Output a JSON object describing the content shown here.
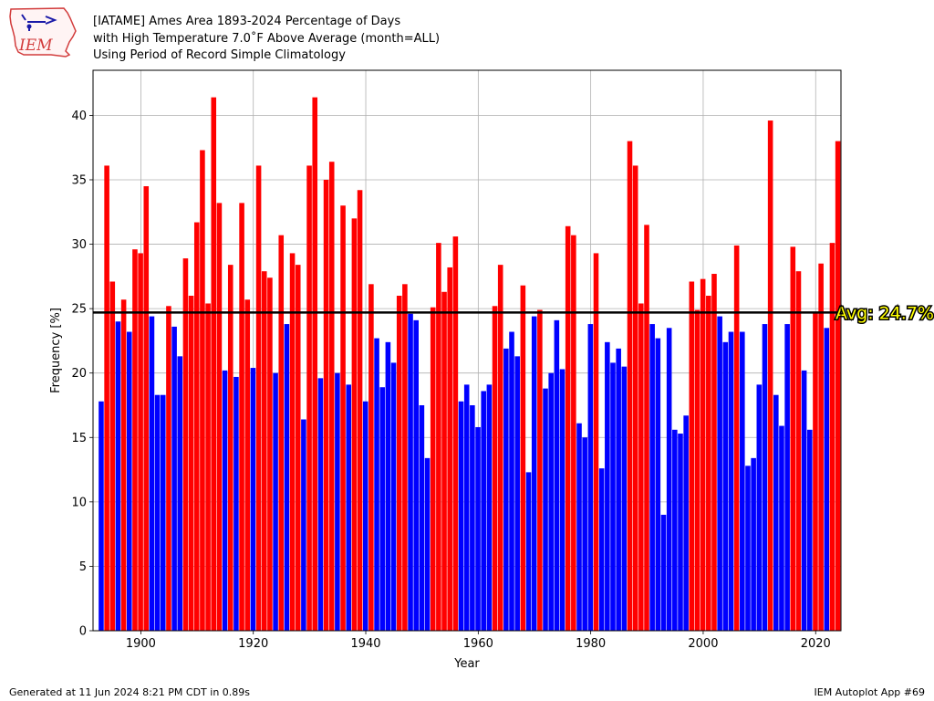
{
  "header": {
    "title_lines": [
      "[IATAME] Ames Area 1893-2024 Percentage of Days",
      "with High Temperature 7.0˚F Above Average (month=ALL)",
      "Using Period of Record Simple Climatology"
    ],
    "logo_text": "IEM"
  },
  "footer": {
    "left": "Generated at 11 Jun 2024 8:21 PM CDT in 0.89s",
    "right": "IEM Autoplot App #69"
  },
  "colors": {
    "above": "#ff0000",
    "below": "#0000ff",
    "avg_line": "#000000",
    "avg_text": "#ffff00"
  },
  "chart_data": {
    "type": "bar",
    "xlabel": "Year",
    "ylabel": "Frequency [%]",
    "xlim": [
      1891.5,
      2024.5
    ],
    "ylim": [
      0,
      43.5
    ],
    "xticks": [
      1900,
      1920,
      1940,
      1960,
      1980,
      2000,
      2020
    ],
    "yticks": [
      0,
      5,
      10,
      15,
      20,
      25,
      30,
      35,
      40
    ],
    "grid": true,
    "average": 24.7,
    "average_label": "Avg: 24.7%",
    "x": [
      1893,
      1894,
      1895,
      1896,
      1897,
      1898,
      1899,
      1900,
      1901,
      1902,
      1903,
      1904,
      1905,
      1906,
      1907,
      1908,
      1909,
      1910,
      1911,
      1912,
      1913,
      1914,
      1915,
      1916,
      1917,
      1918,
      1919,
      1920,
      1921,
      1922,
      1923,
      1924,
      1925,
      1926,
      1927,
      1928,
      1929,
      1930,
      1931,
      1932,
      1933,
      1934,
      1935,
      1936,
      1937,
      1938,
      1939,
      1940,
      1941,
      1942,
      1943,
      1944,
      1945,
      1946,
      1947,
      1948,
      1949,
      1950,
      1951,
      1952,
      1953,
      1954,
      1955,
      1956,
      1957,
      1958,
      1959,
      1960,
      1961,
      1962,
      1963,
      1964,
      1965,
      1966,
      1967,
      1968,
      1969,
      1970,
      1971,
      1972,
      1973,
      1974,
      1975,
      1976,
      1977,
      1978,
      1979,
      1980,
      1981,
      1982,
      1983,
      1984,
      1985,
      1986,
      1987,
      1988,
      1989,
      1990,
      1991,
      1992,
      1993,
      1994,
      1995,
      1996,
      1997,
      1998,
      1999,
      2000,
      2001,
      2002,
      2003,
      2004,
      2005,
      2006,
      2007,
      2008,
      2009,
      2010,
      2011,
      2012,
      2013,
      2014,
      2015,
      2016,
      2017,
      2018,
      2019,
      2020,
      2021,
      2022,
      2023,
      2024
    ],
    "values": [
      17.8,
      36.1,
      27.1,
      24.0,
      25.7,
      23.2,
      29.6,
      29.3,
      34.5,
      24.4,
      18.3,
      18.3,
      25.2,
      23.6,
      21.3,
      28.9,
      26.0,
      31.7,
      37.3,
      25.4,
      41.4,
      33.2,
      20.2,
      28.4,
      19.7,
      33.2,
      25.7,
      20.4,
      36.1,
      27.9,
      27.4,
      20.0,
      30.7,
      23.8,
      29.3,
      28.4,
      16.4,
      36.1,
      41.4,
      19.6,
      35.0,
      36.4,
      20.0,
      33.0,
      19.1,
      32.0,
      34.2,
      17.8,
      26.9,
      22.7,
      18.9,
      22.4,
      20.8,
      26.0,
      26.9,
      24.6,
      24.1,
      17.5,
      13.4,
      25.1,
      30.1,
      26.3,
      28.2,
      30.6,
      17.8,
      19.1,
      17.5,
      15.8,
      18.6,
      19.1,
      25.2,
      28.4,
      21.9,
      23.2,
      21.3,
      26.8,
      12.3,
      24.4,
      24.9,
      18.8,
      20.0,
      24.1,
      20.3,
      31.4,
      30.7,
      16.1,
      15.0,
      23.8,
      29.3,
      12.6,
      22.4,
      20.8,
      21.9,
      20.5,
      38.0,
      36.1,
      25.4,
      31.5,
      23.8,
      22.7,
      9.0,
      23.5,
      15.6,
      15.3,
      16.7,
      27.1,
      24.9,
      27.3,
      26.0,
      27.7,
      24.4,
      22.4,
      23.2,
      29.9,
      23.2,
      12.8,
      13.4,
      19.1,
      23.8,
      39.6,
      18.3,
      15.9,
      23.8,
      29.8,
      27.9,
      20.2,
      15.6,
      24.7,
      28.5,
      23.5,
      30.1,
      38.0
    ]
  }
}
